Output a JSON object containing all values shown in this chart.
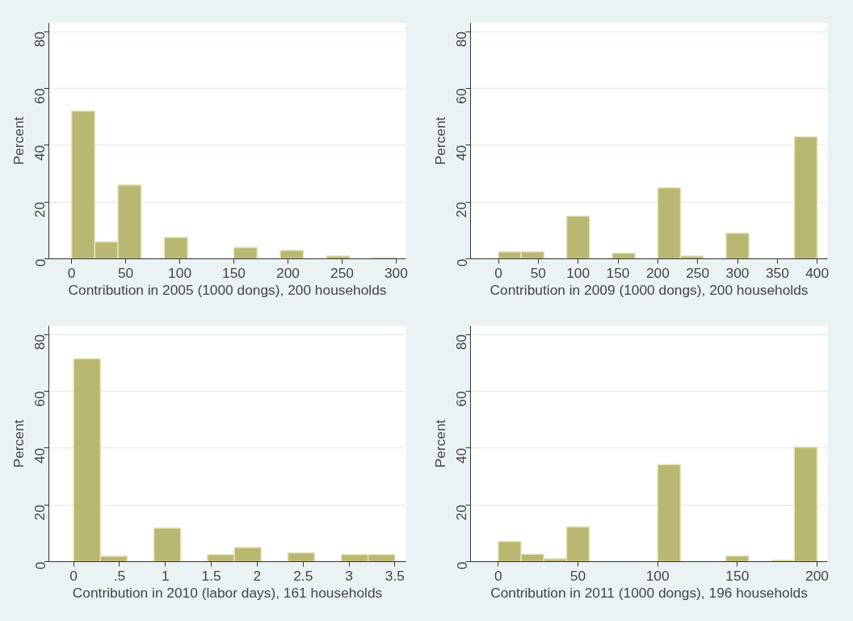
{
  "chart_data": [
    {
      "type": "histogram",
      "xlabel": "Contribution in 2005 (1000 dongs), 200 households",
      "ylabel": "Percent",
      "color": "#b8b872",
      "bins": [
        0,
        21.43,
        42.86,
        64.29,
        85.71,
        107.14,
        128.57,
        150,
        171.43,
        192.86,
        214.29,
        235.71,
        257.14,
        278.57,
        300
      ],
      "values": [
        52,
        6,
        26,
        0,
        7.5,
        0,
        0,
        4,
        0,
        3,
        0,
        1,
        0,
        0.5
      ],
      "xlim": [
        -21,
        309
      ],
      "xticks": [
        0,
        50,
        100,
        150,
        200,
        250,
        300
      ],
      "ylim": [
        0,
        83
      ],
      "yticks": [
        0,
        20,
        40,
        60,
        80
      ],
      "grid": "y"
    },
    {
      "type": "histogram",
      "xlabel": "Contribution in 2009 (1000 dongs), 200 households",
      "ylabel": "Percent",
      "color": "#b8b872",
      "bins": [
        0,
        28.57,
        57.14,
        85.71,
        114.29,
        142.86,
        171.43,
        200,
        228.57,
        257.14,
        285.71,
        314.29,
        342.86,
        371.43,
        400
      ],
      "values": [
        2.5,
        2.5,
        0,
        15,
        0,
        2,
        0,
        25,
        1,
        0,
        9,
        0,
        0,
        43
      ],
      "xlim": [
        -35,
        413
      ],
      "xticks": [
        0,
        50,
        100,
        150,
        200,
        250,
        300,
        350,
        400
      ],
      "ylim": [
        0,
        83
      ],
      "yticks": [
        0,
        20,
        40,
        60,
        80
      ],
      "grid": "y"
    },
    {
      "type": "histogram",
      "xlabel": "Contribution in 2010 (labor days), 161 households",
      "ylabel": "Percent",
      "color": "#b8b872",
      "bins": [
        0,
        0.2917,
        0.5833,
        0.875,
        1.1667,
        1.4583,
        1.75,
        2.0417,
        2.3333,
        2.625,
        2.9167,
        3.2083,
        3.5
      ],
      "values": [
        71.4,
        1.9,
        0,
        11.8,
        0,
        2.5,
        5,
        0,
        3.1,
        0,
        2.5,
        2.5
      ],
      "xlim": [
        -0.27,
        3.62
      ],
      "xticks": [
        0,
        {
          "value": 0.5,
          "label": ".5"
        },
        1,
        1.5,
        2,
        2.5,
        3,
        3.5
      ],
      "ylim": [
        0,
        83
      ],
      "yticks": [
        0,
        20,
        40,
        60,
        80
      ],
      "grid": "y"
    },
    {
      "type": "histogram",
      "xlabel": "Contribution in 2011 (1000 dongs), 196 households",
      "ylabel": "Percent",
      "color": "#b8b872",
      "bins": [
        0,
        14.29,
        28.57,
        42.86,
        57.14,
        71.43,
        85.71,
        100,
        114.29,
        128.57,
        142.86,
        157.14,
        171.43,
        185.71,
        200
      ],
      "values": [
        7.1,
        2.6,
        1,
        12.2,
        0,
        0,
        0,
        34.2,
        0,
        0,
        2,
        0,
        0.5,
        40.3
      ],
      "xlim": [
        -17.4,
        206.6
      ],
      "xticks": [
        0,
        50,
        100,
        150,
        200
      ],
      "ylim": [
        0,
        83
      ],
      "yticks": [
        0,
        20,
        40,
        60,
        80
      ],
      "grid": "y"
    }
  ]
}
